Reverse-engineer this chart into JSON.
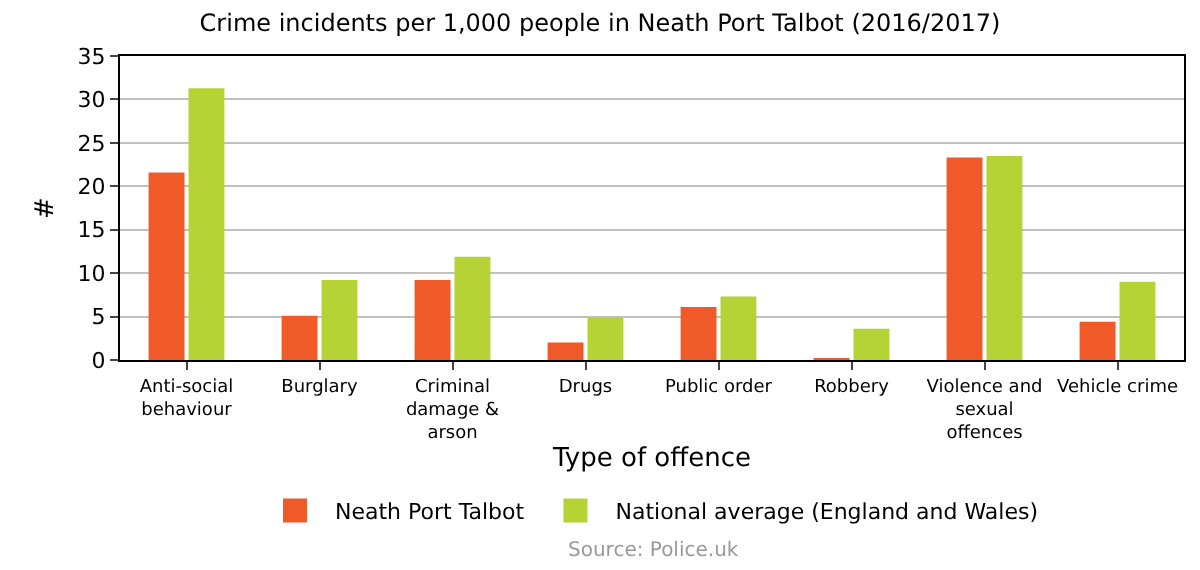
{
  "chart_data": {
    "type": "bar",
    "title": "Crime incidents per 1,000 people in Neath Port Talbot (2016/2017)",
    "xlabel": "Type of offence",
    "ylabel": "#",
    "categories": [
      "Anti-social behaviour",
      "Burglary",
      "Criminal damage & arson",
      "Drugs",
      "Public order",
      "Robbery",
      "Violence and sexual offences",
      "Vehicle crime"
    ],
    "series": [
      {
        "name": "Neath Port Talbot",
        "color": "#f05a28",
        "values": [
          21.6,
          5.1,
          9.2,
          2.0,
          6.1,
          0.2,
          23.3,
          4.4
        ]
      },
      {
        "name": "National average (England and Wales)",
        "color": "#b5d334",
        "values": [
          31.3,
          9.2,
          11.9,
          4.9,
          7.3,
          3.6,
          23.5,
          9.0
        ]
      }
    ],
    "ylim": [
      0,
      35
    ],
    "yticks": [
      0,
      5,
      10,
      15,
      20,
      25,
      30,
      35
    ],
    "grid": "y",
    "legend": "bottom",
    "annotations": [
      "Source: Police.uk"
    ]
  }
}
